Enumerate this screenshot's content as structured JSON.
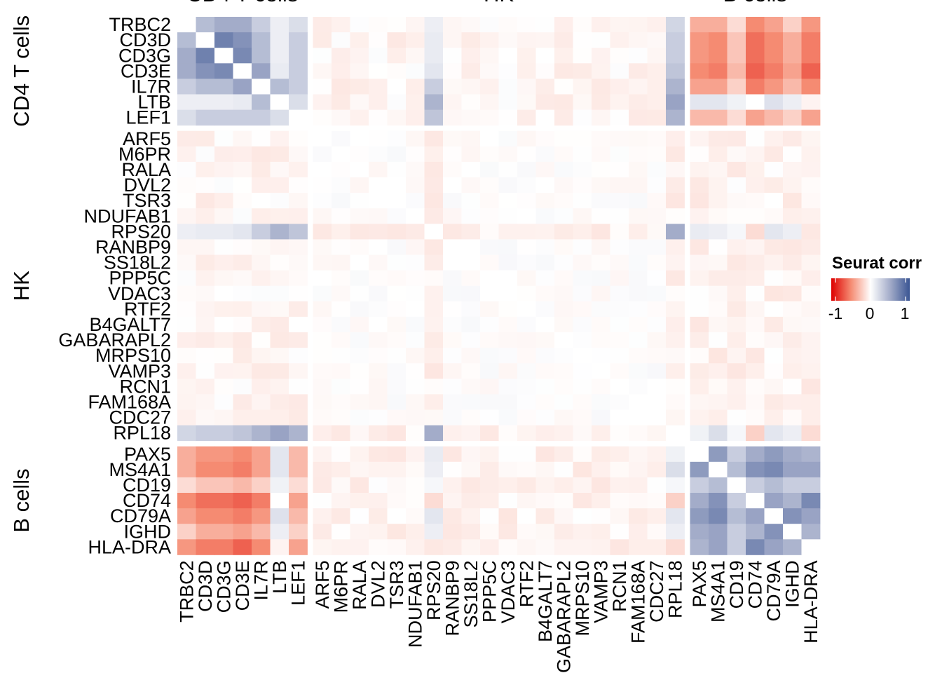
{
  "chart_data": {
    "type": "heatmap",
    "title": "",
    "genes": [
      "TRBC2",
      "CD3D",
      "CD3G",
      "CD3E",
      "IL7R",
      "LTB",
      "LEF1",
      "ARF5",
      "M6PR",
      "RALA",
      "DVL2",
      "TSR3",
      "NDUFAB1",
      "RPS20",
      "RANBP9",
      "SS18L2",
      "PPP5C",
      "VDAC3",
      "RTF2",
      "B4GALT7",
      "GABARAPL2",
      "MRPS10",
      "VAMP3",
      "RCN1",
      "FAM168A",
      "CDC27",
      "RPL18",
      "PAX5",
      "MS4A1",
      "CD19",
      "CD74",
      "CD79A",
      "IGHD",
      "HLA-DRA"
    ],
    "groups": [
      {
        "name": "CD4 T cells",
        "genes": [
          "TRBC2",
          "CD3D",
          "CD3G",
          "CD3E",
          "IL7R",
          "LTB",
          "LEF1"
        ]
      },
      {
        "name": "HK",
        "genes": [
          "ARF5",
          "M6PR",
          "RALA",
          "DVL2",
          "TSR3",
          "NDUFAB1",
          "RPS20",
          "RANBP9",
          "SS18L2",
          "PPP5C",
          "VDAC3",
          "RTF2",
          "B4GALT7",
          "GABARAPL2",
          "MRPS10",
          "VAMP3",
          "RCN1",
          "FAM168A",
          "CDC27",
          "RPL18"
        ]
      },
      {
        "name": "B cells",
        "genes": [
          "PAX5",
          "MS4A1",
          "CD19",
          "CD74",
          "CD79A",
          "IGHD",
          "HLA-DRA"
        ]
      }
    ],
    "legend": {
      "title": "Seurat corr",
      "ticks": [
        "-1",
        "0",
        "1"
      ],
      "range": [
        -1,
        1
      ],
      "position": "right"
    },
    "colors": {
      "low": "#dd0000",
      "mid": "#ffffff",
      "high": "#3a5593",
      "na": "#ffffff"
    },
    "blocks": {
      "T_T": [
        [
          null,
          0.4,
          0.5,
          0.5,
          0.3,
          0.1,
          0.2
        ],
        [
          0.4,
          null,
          0.75,
          0.65,
          0.4,
          0.1,
          0.3
        ],
        [
          0.5,
          0.75,
          null,
          0.7,
          0.4,
          0.1,
          0.3
        ],
        [
          0.5,
          0.65,
          0.7,
          null,
          0.55,
          0.12,
          0.3
        ],
        [
          0.3,
          0.4,
          0.4,
          0.55,
          null,
          0.4,
          0.3
        ],
        [
          0.1,
          0.1,
          0.1,
          0.12,
          0.4,
          null,
          0.2
        ],
        [
          0.2,
          0.3,
          0.3,
          0.3,
          0.3,
          0.2,
          null
        ]
      ],
      "T_B": [
        [
          -0.35,
          -0.35,
          -0.15,
          -0.5,
          -0.4,
          -0.2,
          -0.45
        ],
        [
          -0.45,
          -0.5,
          -0.25,
          -0.6,
          -0.5,
          -0.35,
          -0.55
        ],
        [
          -0.45,
          -0.5,
          -0.25,
          -0.6,
          -0.5,
          -0.35,
          -0.55
        ],
        [
          -0.5,
          -0.55,
          -0.3,
          -0.65,
          -0.55,
          -0.4,
          -0.65
        ],
        [
          -0.4,
          -0.4,
          -0.2,
          -0.55,
          -0.45,
          -0.3,
          -0.5
        ],
        [
          0.15,
          0.15,
          0.08,
          0.0,
          0.18,
          0.1,
          -0.05
        ],
        [
          -0.3,
          -0.3,
          -0.15,
          -0.4,
          -0.3,
          -0.2,
          -0.4
        ]
      ],
      "B_B": [
        [
          null,
          0.6,
          0.3,
          0.5,
          0.6,
          0.5,
          0.45
        ],
        [
          0.6,
          null,
          0.4,
          0.65,
          0.7,
          0.55,
          0.55
        ],
        [
          0.3,
          0.4,
          null,
          0.3,
          0.4,
          0.3,
          0.3
        ],
        [
          0.5,
          0.65,
          0.3,
          null,
          0.55,
          0.45,
          0.7
        ],
        [
          0.6,
          0.7,
          0.4,
          0.55,
          null,
          0.65,
          0.55
        ],
        [
          0.5,
          0.55,
          0.3,
          0.45,
          0.65,
          null,
          0.45
        ],
        [
          0.45,
          0.55,
          0.3,
          0.7,
          0.55,
          0.45,
          null
        ]
      ],
      "T_HK_RPS20": [
        0.1,
        0.12,
        0.12,
        0.15,
        0.3,
        0.45,
        0.35
      ],
      "T_HK_RPL18": [
        0.25,
        0.3,
        0.3,
        0.35,
        0.45,
        0.55,
        0.45
      ],
      "B_HK_RPS20": [
        0.12,
        0.1,
        0.05,
        -0.15,
        0.15,
        0.1,
        -0.1
      ],
      "B_HK_RPL18": [
        0.08,
        0.2,
        0.05,
        -0.2,
        0.15,
        0.1,
        -0.15
      ],
      "HK_HK_RPS20_RPL18": 0.5
    }
  }
}
